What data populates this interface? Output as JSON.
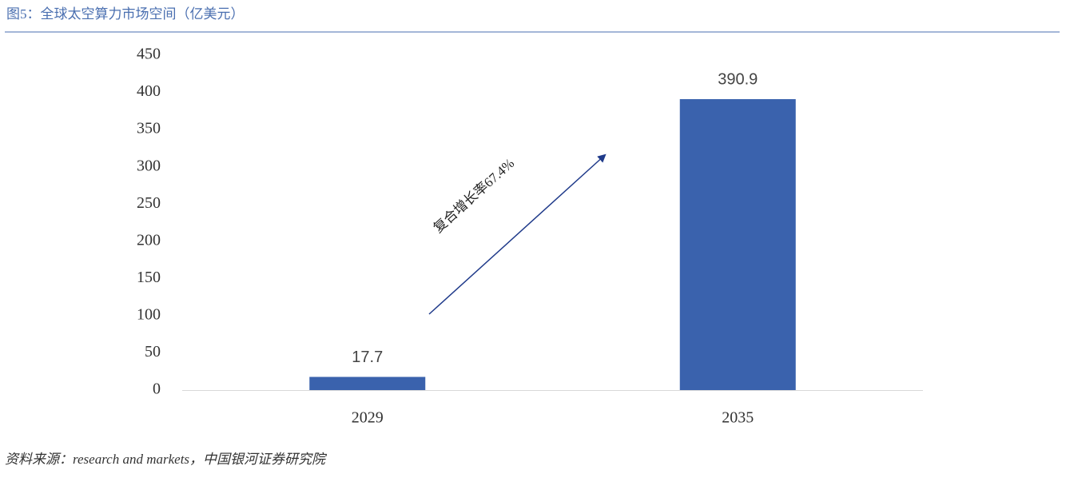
{
  "chart_data": {
    "type": "bar",
    "title": "图5：全球太空算力市场空间（亿美元）",
    "categories": [
      "2029",
      "2035"
    ],
    "values": [
      17.7,
      390.9
    ],
    "color": "#3a62ad",
    "ylim": [
      0,
      450
    ],
    "yticks": [
      0,
      50,
      100,
      150,
      200,
      250,
      300,
      350,
      400,
      450
    ],
    "grid": false,
    "annotation": "复合增长率67.4%",
    "source": "资料来源：research and markets，中国银河证券研究院"
  }
}
